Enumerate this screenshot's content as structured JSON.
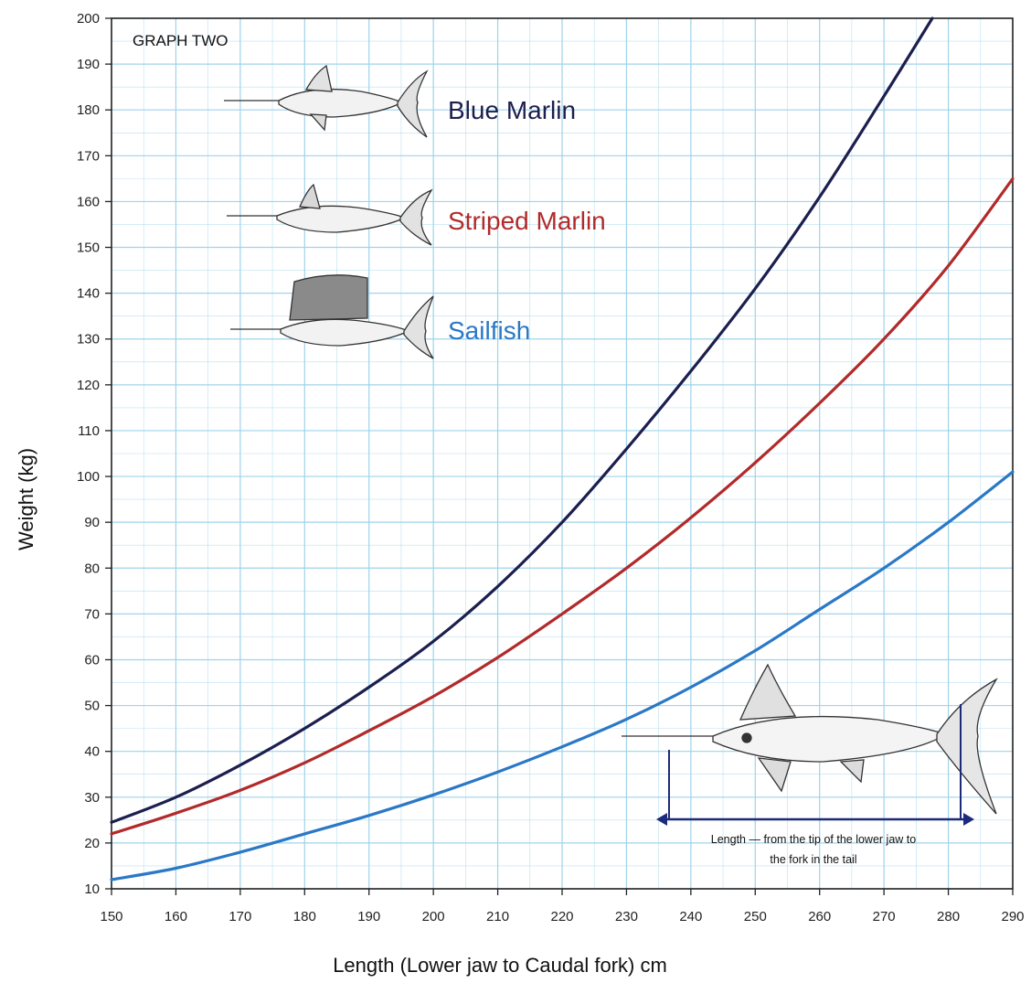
{
  "chart_data": {
    "type": "line",
    "title": "GRAPH TWO",
    "xlabel": "Length (Lower jaw to Caudal fork) cm",
    "ylabel": "Weight (kg)",
    "xlim": [
      150,
      290
    ],
    "ylim": [
      10,
      200
    ],
    "x_ticks": [
      150,
      160,
      170,
      180,
      190,
      200,
      210,
      220,
      230,
      240,
      250,
      260,
      270,
      280,
      290
    ],
    "y_ticks": [
      10,
      20,
      30,
      40,
      50,
      60,
      70,
      80,
      90,
      100,
      110,
      120,
      130,
      140,
      150,
      160,
      170,
      180,
      190,
      200
    ],
    "grid": true,
    "minor_grid": true,
    "colors": {
      "grid": "#9fd3ea",
      "axis": "#222222"
    },
    "series": [
      {
        "name": "Blue Marlin",
        "color": "#1c1f4e",
        "x": [
          150,
          160,
          170,
          180,
          190,
          200,
          210,
          220,
          230,
          240,
          250,
          260,
          270,
          277.5
        ],
        "y": [
          24.5,
          30,
          37,
          45,
          54,
          64,
          76,
          90,
          106,
          123,
          141,
          161,
          183,
          200
        ]
      },
      {
        "name": "Striped Marlin",
        "color": "#b22a2a",
        "x": [
          150,
          160,
          170,
          180,
          190,
          200,
          210,
          220,
          230,
          240,
          250,
          260,
          270,
          280,
          290
        ],
        "y": [
          22,
          26.5,
          31.5,
          37.5,
          44.5,
          52,
          60.5,
          70,
          80,
          91,
          103,
          116,
          130,
          146,
          165
        ]
      },
      {
        "name": "Sailfish",
        "color": "#2a78c6",
        "x": [
          150,
          160,
          170,
          180,
          190,
          200,
          210,
          220,
          230,
          240,
          250,
          260,
          270,
          280,
          290
        ],
        "y": [
          12,
          14.5,
          18,
          22,
          26,
          30.5,
          35.5,
          41,
          47,
          54,
          62,
          71,
          80,
          90,
          101
        ]
      }
    ],
    "annotation": {
      "line1": "Length — from the tip of the lower jaw to",
      "line2": "the fork in the tail"
    }
  }
}
